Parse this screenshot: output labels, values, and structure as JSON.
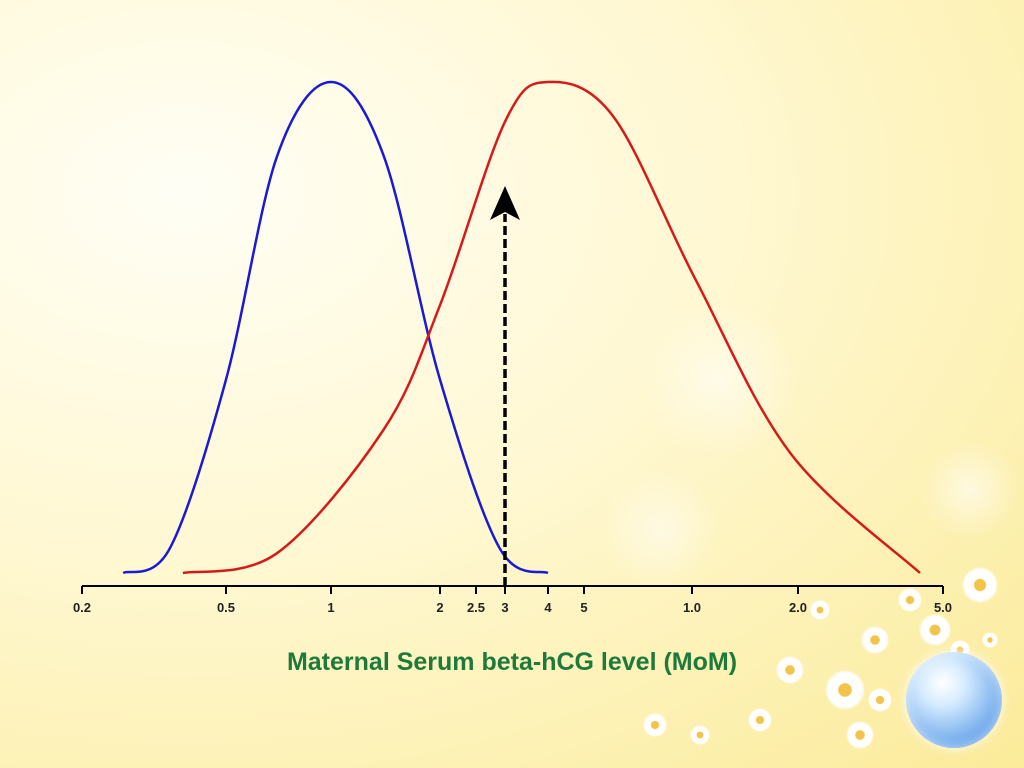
{
  "chart_data": {
    "type": "line",
    "title": "",
    "xlabel": "Maternal Serum beta-hCG level (MoM)",
    "ylabel": "",
    "x_ticks": [
      "0.2",
      "0.5",
      "1",
      "2",
      "2.5",
      "3",
      "4",
      "5",
      "1.0",
      "2.0",
      "5.0"
    ],
    "grid": false,
    "legend": "none",
    "series": [
      {
        "color": "#1a1ad6",
        "x": [
          0.26,
          0.35,
          0.5,
          0.7,
          1.0,
          1.4,
          2.0,
          2.9,
          4.0
        ],
        "y": [
          0.01,
          0.06,
          0.4,
          0.85,
          1.0,
          0.85,
          0.4,
          0.06,
          0.01
        ]
      },
      {
        "color": "#d61a1a",
        "x": [
          0.38,
          0.7,
          1.4,
          2.0,
          3.0,
          4.0,
          6.0,
          10.0,
          18.0,
          40.0
        ],
        "y": [
          0.01,
          0.05,
          0.3,
          0.55,
          0.92,
          1.0,
          0.93,
          0.6,
          0.25,
          0.01
        ]
      }
    ],
    "threshold": {
      "x": 3,
      "style": "dashed-arrow",
      "color": "#000000"
    }
  }
}
